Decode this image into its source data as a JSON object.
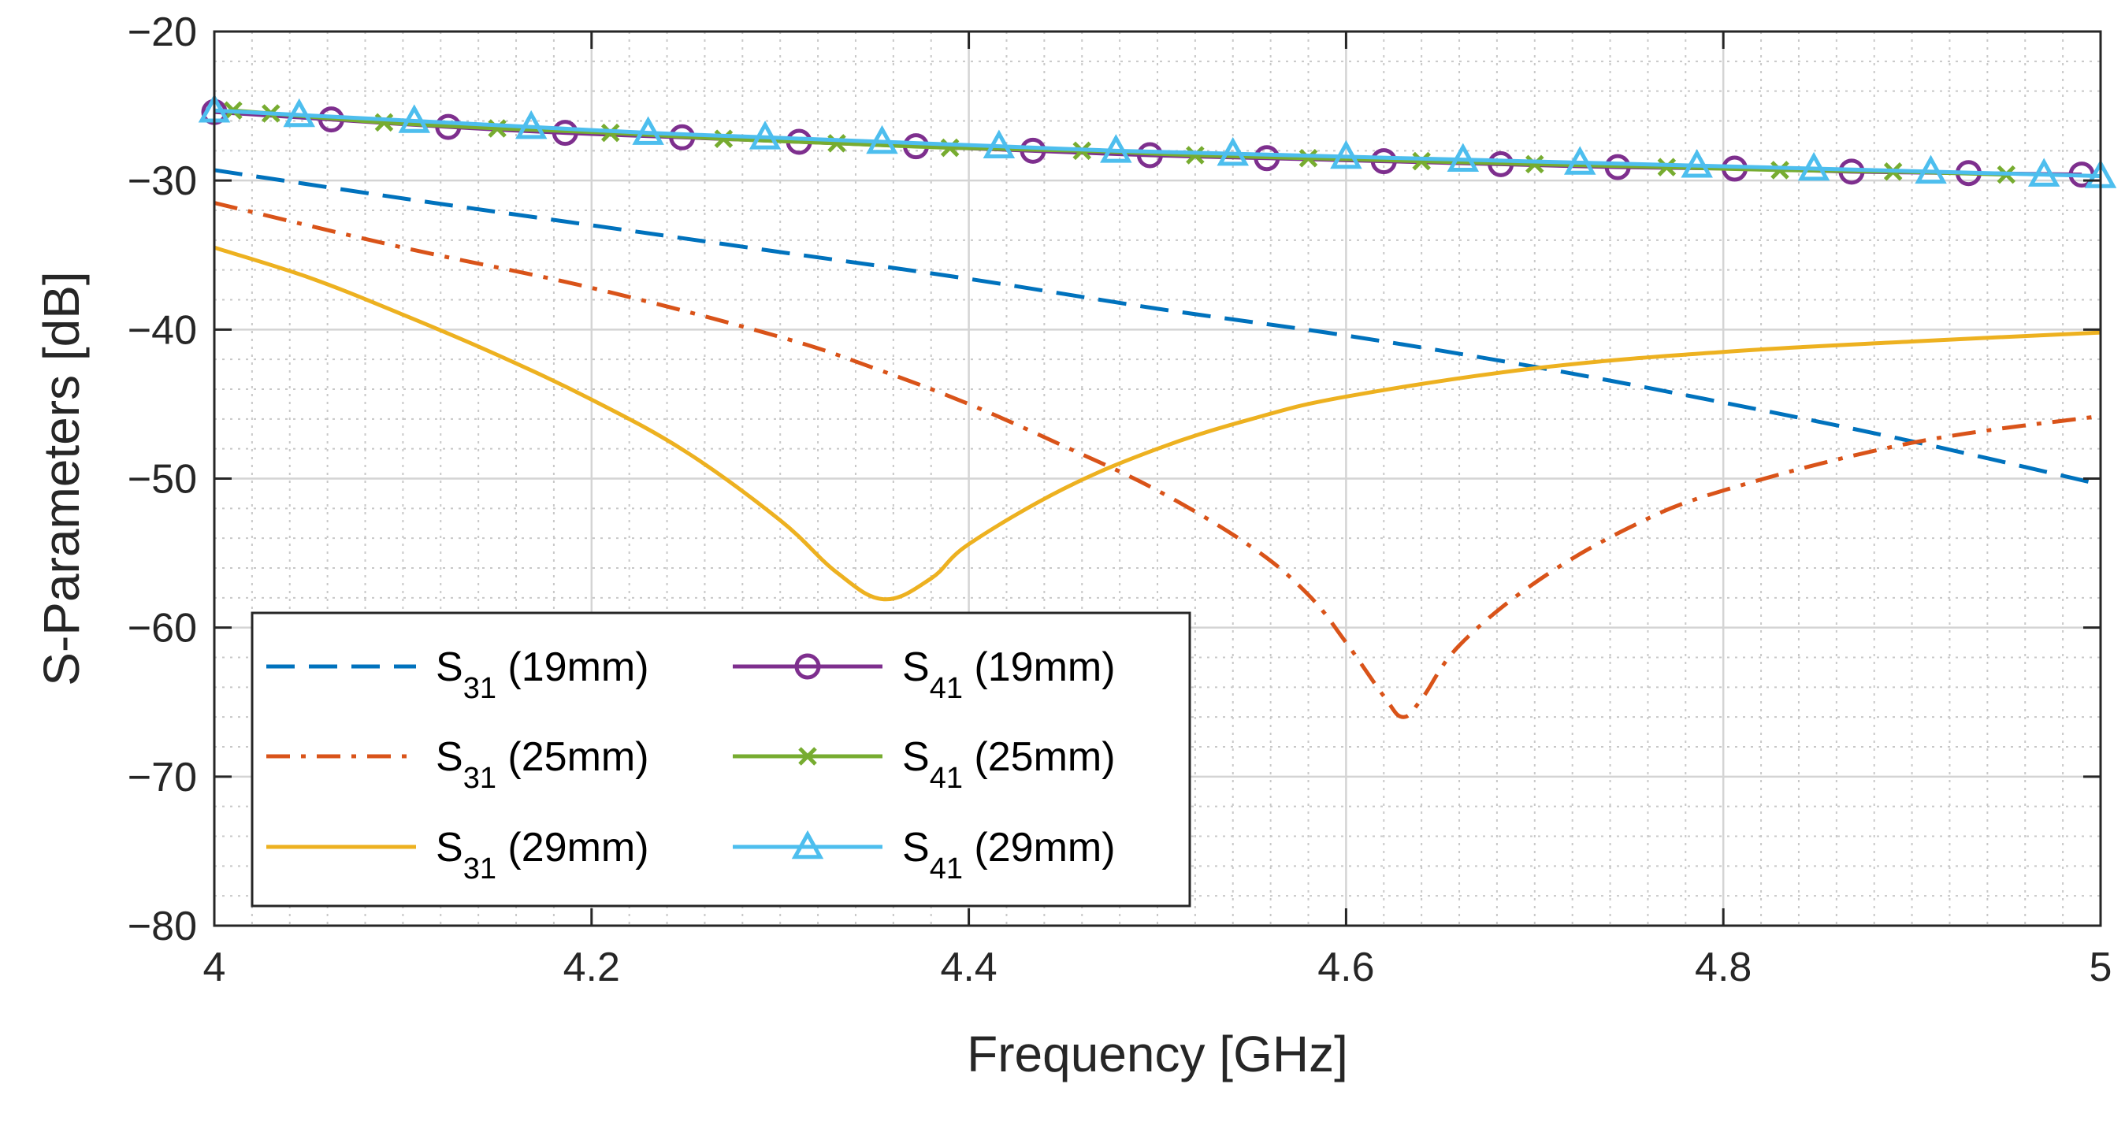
{
  "chart_data": {
    "type": "line",
    "title": "",
    "xlabel": "Frequency [GHz]",
    "ylabel": "S-Parameters [dB]",
    "xlim": [
      4,
      5
    ],
    "ylim": [
      -80,
      -20
    ],
    "grid": true,
    "minor_grid": true,
    "legend_position": "lower-left",
    "x_ticks": [
      "4",
      "4.2",
      "4.4",
      "4.6",
      "4.8",
      "5"
    ],
    "y_ticks": [
      "−80",
      "−70",
      "−60",
      "−50",
      "−40",
      "−30",
      "−20"
    ],
    "x_tick_values": [
      4,
      4.2,
      4.4,
      4.6,
      4.8,
      5
    ],
    "y_tick_values": [
      -80,
      -70,
      -60,
      -50,
      -40,
      -30,
      -20
    ],
    "series": [
      {
        "name": "S31 (19mm)",
        "main": "S",
        "sub": "31",
        "suffix": " (19mm)",
        "color": "#0072BD",
        "dash": "dashed",
        "marker": "none",
        "x": [
          4.0,
          4.1,
          4.2,
          4.3,
          4.4,
          4.5,
          4.6,
          4.7,
          4.8,
          4.9,
          5.0
        ],
        "values": [
          -29.3,
          -31.2,
          -33.0,
          -34.8,
          -36.6,
          -38.6,
          -40.4,
          -42.5,
          -44.9,
          -47.5,
          -50.4
        ]
      },
      {
        "name": "S31 (25mm)",
        "main": "S",
        "sub": "31",
        "suffix": " (25mm)",
        "color": "#D95319",
        "dash": "dashdot",
        "marker": "none",
        "x": [
          4.0,
          4.1,
          4.2,
          4.3,
          4.35,
          4.4,
          4.45,
          4.5,
          4.55,
          4.58,
          4.6,
          4.62,
          4.63,
          4.64,
          4.66,
          4.7,
          4.75,
          4.8,
          4.9,
          5.0
        ],
        "values": [
          -31.5,
          -34.5,
          -37.2,
          -40.5,
          -42.6,
          -45.0,
          -47.8,
          -50.8,
          -54.6,
          -57.8,
          -61.0,
          -64.6,
          -66.0,
          -64.8,
          -61.2,
          -57.0,
          -53.3,
          -50.8,
          -47.6,
          -45.8
        ]
      },
      {
        "name": "S31 (29mm)",
        "main": "S",
        "sub": "31",
        "suffix": " (29mm)",
        "color": "#EDB120",
        "dash": "solid",
        "marker": "none",
        "x": [
          4.0,
          4.05,
          4.1,
          4.15,
          4.2,
          4.25,
          4.3,
          4.33,
          4.355,
          4.38,
          4.4,
          4.45,
          4.5,
          4.55,
          4.6,
          4.7,
          4.8,
          4.9,
          5.0
        ],
        "values": [
          -34.5,
          -36.5,
          -39.0,
          -41.7,
          -44.7,
          -48.2,
          -52.8,
          -56.3,
          -58.1,
          -56.7,
          -54.4,
          -50.7,
          -48.0,
          -46.0,
          -44.5,
          -42.6,
          -41.5,
          -40.8,
          -40.2
        ]
      },
      {
        "name": "S41 (19mm)",
        "main": "S",
        "sub": "41",
        "suffix": " (19mm)",
        "color": "#7E2F8E",
        "dash": "solid",
        "marker": "circle",
        "x": [
          4.0,
          4.062,
          4.124,
          4.186,
          4.248,
          4.31,
          4.372,
          4.434,
          4.496,
          4.558,
          4.62,
          4.682,
          4.744,
          4.806,
          4.868,
          4.93,
          4.99
        ],
        "values": [
          -25.4,
          -25.9,
          -26.4,
          -26.8,
          -27.1,
          -27.4,
          -27.7,
          -28.0,
          -28.3,
          -28.5,
          -28.7,
          -28.9,
          -29.1,
          -29.2,
          -29.4,
          -29.5,
          -29.6
        ]
      },
      {
        "name": "S41 (25mm)",
        "main": "S",
        "sub": "41",
        "suffix": " (25mm)",
        "color": "#77AC30",
        "dash": "solid",
        "marker": "x",
        "x": [
          4.01,
          4.03,
          4.09,
          4.15,
          4.21,
          4.27,
          4.33,
          4.39,
          4.46,
          4.52,
          4.58,
          4.64,
          4.7,
          4.77,
          4.83,
          4.89,
          4.95
        ],
        "values": [
          -25.3,
          -25.5,
          -26.1,
          -26.5,
          -26.8,
          -27.2,
          -27.5,
          -27.8,
          -28.0,
          -28.3,
          -28.5,
          -28.7,
          -28.9,
          -29.1,
          -29.3,
          -29.4,
          -29.6
        ]
      },
      {
        "name": "S41 (29mm)",
        "main": "S",
        "sub": "41",
        "suffix": " (29mm)",
        "color": "#4DBEEE",
        "dash": "solid",
        "marker": "triangle",
        "x": [
          4.0,
          4.045,
          4.106,
          4.168,
          4.23,
          4.292,
          4.354,
          4.416,
          4.478,
          4.54,
          4.6,
          4.662,
          4.724,
          4.786,
          4.848,
          4.91,
          4.97,
          5.0
        ],
        "values": [
          -25.3,
          -25.6,
          -26.0,
          -26.4,
          -26.8,
          -27.1,
          -27.4,
          -27.7,
          -28.0,
          -28.2,
          -28.4,
          -28.6,
          -28.8,
          -29.0,
          -29.2,
          -29.4,
          -29.6,
          -29.7
        ]
      }
    ]
  }
}
